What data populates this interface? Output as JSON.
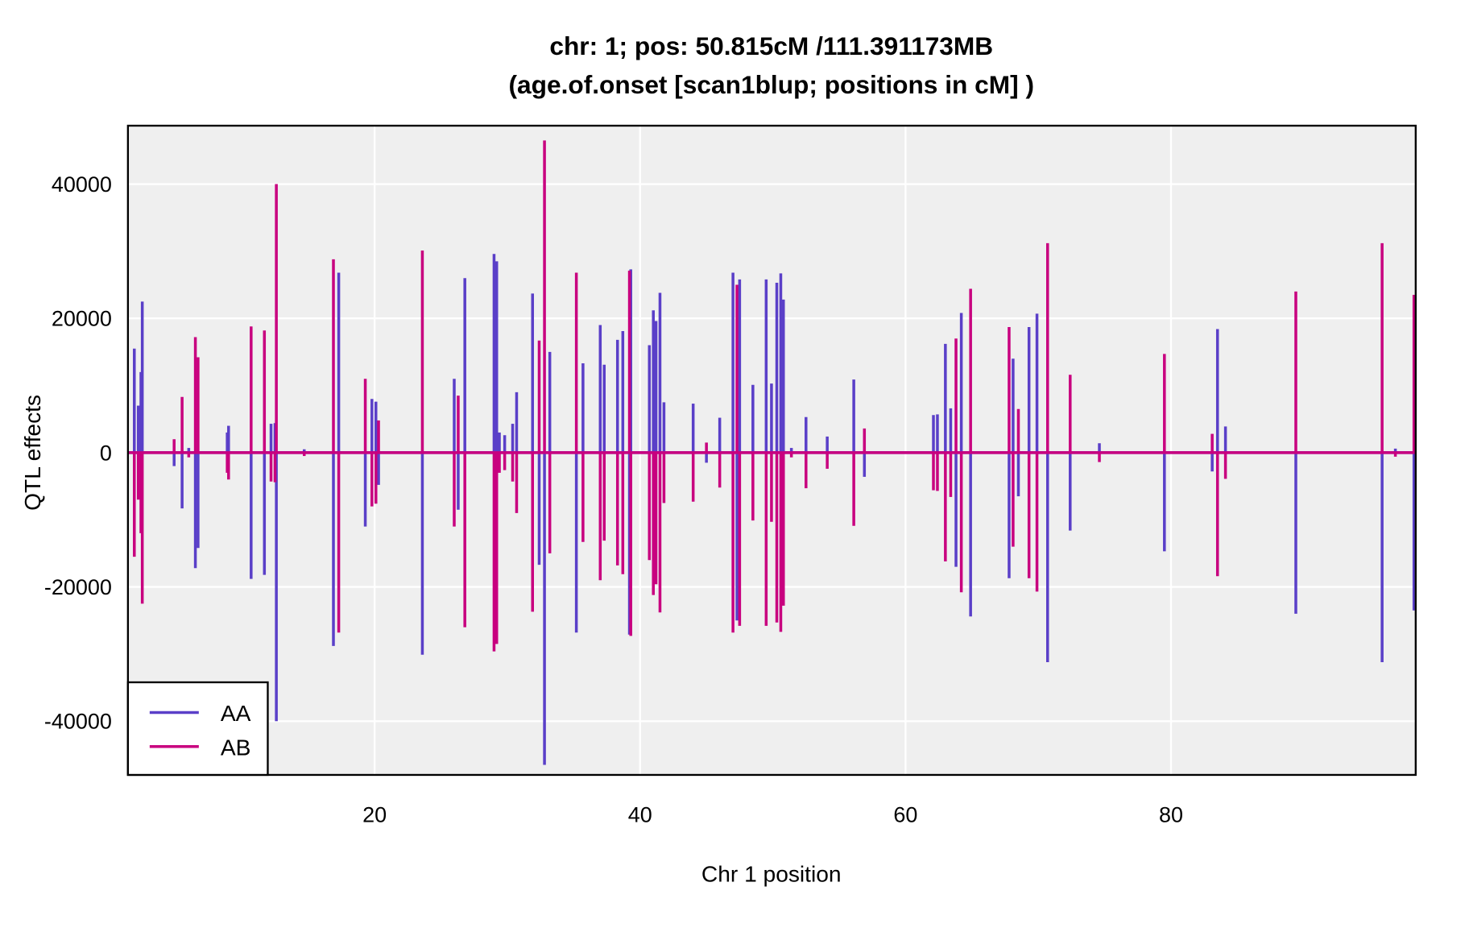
{
  "chart_data": {
    "type": "spike",
    "title": [
      "chr: 1; pos: 50.815cM /111.391173MB",
      "(age.of.onset [scan1blup; positions in cM] )"
    ],
    "xlabel": "Chr 1 position",
    "ylabel": "QTL effects",
    "xlim": [
      1.42,
      98.43
    ],
    "xticks": [
      20,
      40,
      60,
      80
    ],
    "ylim": [
      -48000,
      48700
    ],
    "yticks": [
      40000,
      20000,
      0,
      -20000,
      -40000
    ],
    "grid": true,
    "legend": "bottomleft",
    "x": [
      1.9,
      2.2,
      2.4,
      2.5,
      4.9,
      5.5,
      6.0,
      6.5,
      6.7,
      8.9,
      9.0,
      10.7,
      11.7,
      12.2,
      12.5,
      12.6,
      14.7,
      16.9,
      17.3,
      19.3,
      19.8,
      20.1,
      20.3,
      23.6,
      26.0,
      26.3,
      26.8,
      29.0,
      29.2,
      29.4,
      29.8,
      30.4,
      30.7,
      31.9,
      32.4,
      32.8,
      33.2,
      35.2,
      35.7,
      37.0,
      37.3,
      38.3,
      38.7,
      39.2,
      39.3,
      40.7,
      41.0,
      41.2,
      41.5,
      41.8,
      44.0,
      45.0,
      46.0,
      47.0,
      47.3,
      47.5,
      48.5,
      49.5,
      49.9,
      50.3,
      50.6,
      50.8,
      51.4,
      52.5,
      54.1,
      56.1,
      56.9,
      62.1,
      62.4,
      63.0,
      63.4,
      63.8,
      64.2,
      64.9,
      67.8,
      68.1,
      68.5,
      69.3,
      69.9,
      70.7,
      72.4,
      74.6,
      79.5,
      83.1,
      83.5,
      84.1,
      89.4,
      95.9,
      96.9,
      98.3
    ],
    "series": [
      {
        "name": "AA",
        "color": "#5a3fc8",
        "values": [
          15500,
          7000,
          12000,
          22500,
          -2000,
          -8300,
          700,
          -17200,
          -14200,
          3000,
          4000,
          -18800,
          -18200,
          4300,
          4400,
          -40000,
          500,
          -28800,
          26800,
          -11000,
          8000,
          7600,
          -4800,
          -30100,
          11000,
          -8500,
          26000,
          29600,
          28500,
          3000,
          2600,
          4300,
          9000,
          23700,
          -16700,
          -46500,
          15000,
          -26800,
          13300,
          19000,
          13100,
          16800,
          18100,
          -27100,
          27300,
          16000,
          21200,
          19600,
          23800,
          7500,
          7300,
          -1500,
          5200,
          26800,
          -25000,
          25800,
          10100,
          25800,
          10300,
          25300,
          26700,
          22800,
          700,
          5300,
          2400,
          10900,
          -3600,
          5600,
          5700,
          16200,
          6600,
          -17000,
          20800,
          -24400,
          -18700,
          14000,
          -6500,
          18700,
          20700,
          -31200,
          -11600,
          1400,
          -14700,
          -2800,
          18400,
          3900,
          -24000,
          -31200,
          600,
          -23500
        ]
      },
      {
        "name": "AB",
        "color": "#c8007f",
        "values": [
          -15500,
          -7000,
          -12000,
          -22500,
          2000,
          8300,
          -700,
          17200,
          14200,
          -3000,
          -4000,
          18800,
          18200,
          -4300,
          -4400,
          40000,
          -500,
          28800,
          -26800,
          11000,
          -8000,
          -7600,
          4800,
          30100,
          -11000,
          8500,
          -26000,
          -29600,
          -28500,
          -3000,
          -2600,
          -4300,
          -9000,
          -23700,
          16700,
          46500,
          -15000,
          26800,
          -13300,
          -19000,
          -13100,
          -16800,
          -18100,
          27100,
          -27300,
          -16000,
          -21200,
          -19600,
          -23800,
          -7500,
          -7300,
          1500,
          -5200,
          -26800,
          25000,
          -25800,
          -10100,
          -25800,
          -10300,
          -25300,
          -26700,
          -22800,
          -700,
          -5300,
          -2400,
          -10900,
          3600,
          -5600,
          -5700,
          -16200,
          -6600,
          17000,
          -20800,
          24400,
          18700,
          -14000,
          6500,
          -18700,
          -20700,
          31200,
          11600,
          -1400,
          14700,
          2800,
          -18400,
          -3900,
          24000,
          31200,
          -600,
          23500
        ]
      }
    ]
  }
}
